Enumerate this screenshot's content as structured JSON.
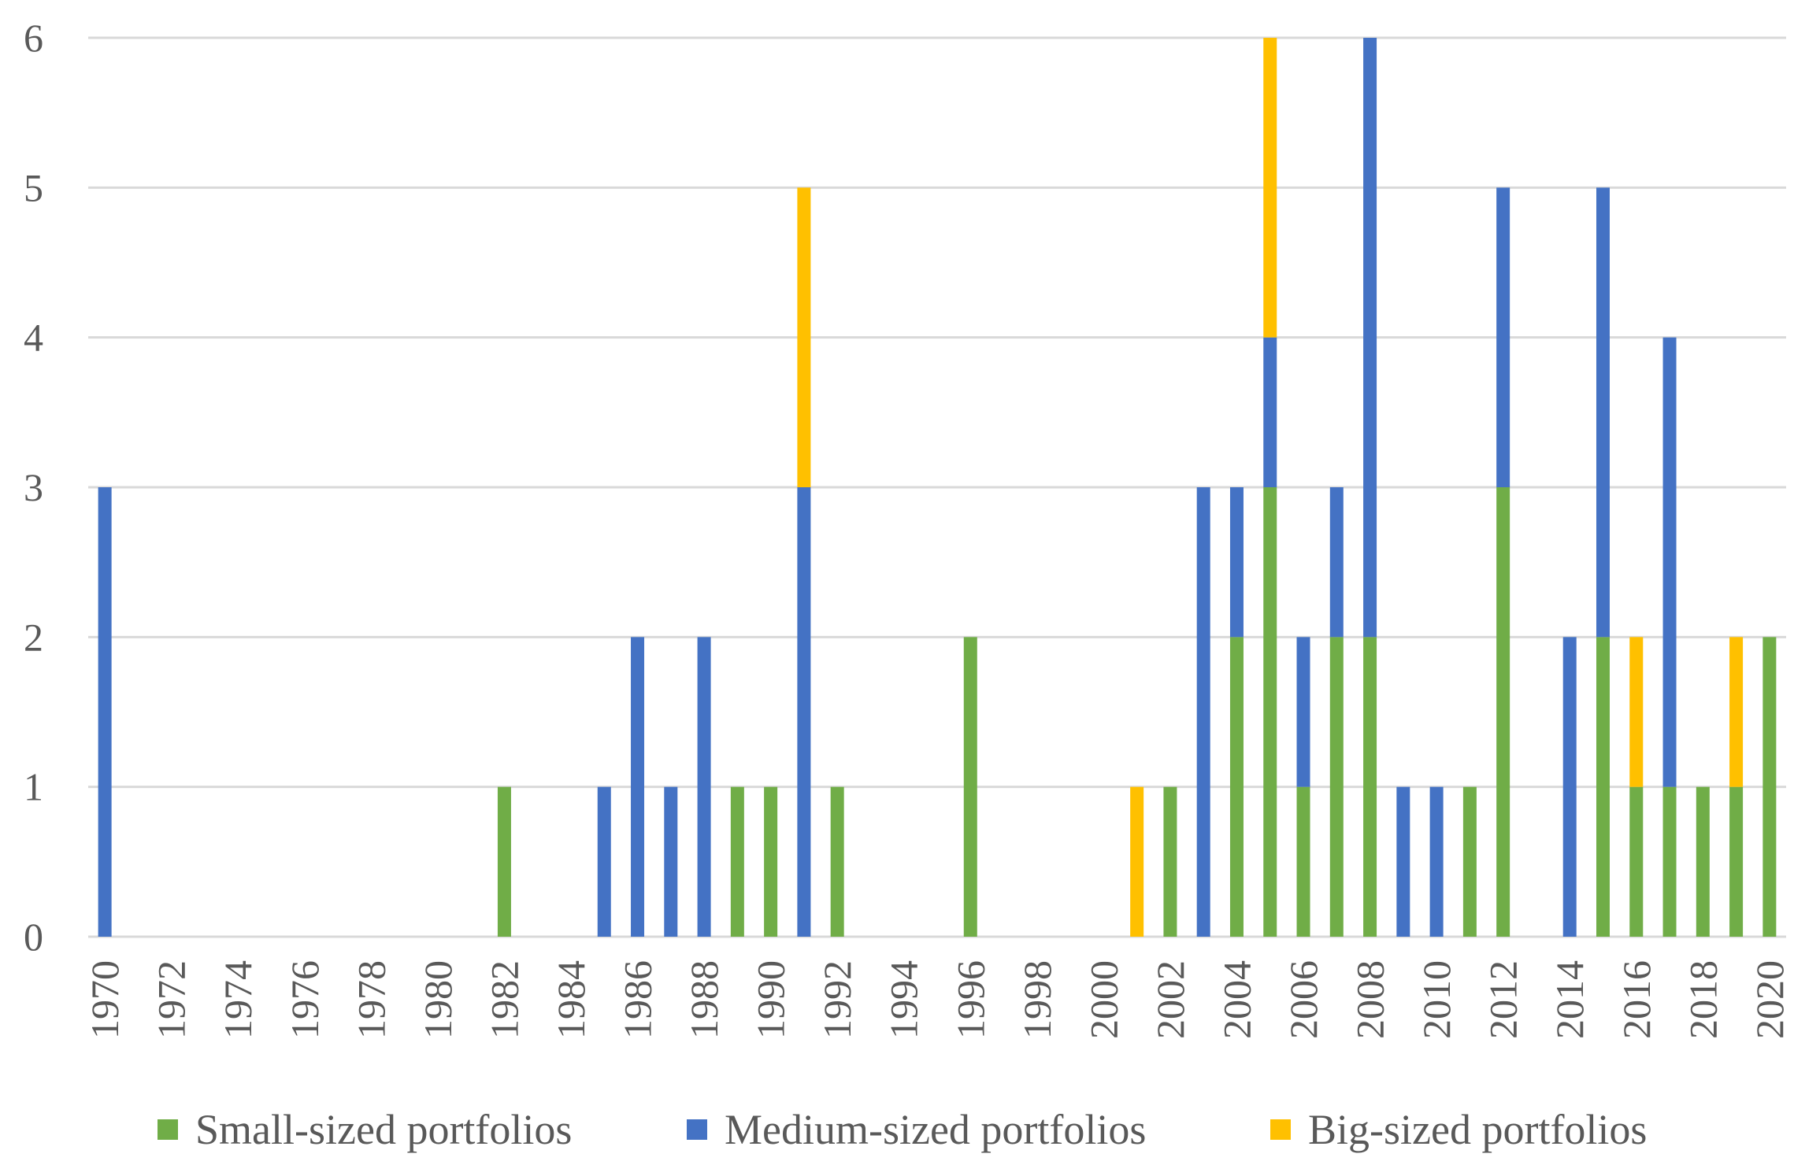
{
  "chart_data": {
    "type": "bar",
    "stacked": true,
    "title": "",
    "xlabel": "",
    "ylabel": "",
    "ylim": [
      0,
      6
    ],
    "yticks": [
      0,
      1,
      2,
      3,
      4,
      5,
      6
    ],
    "grid": true,
    "legend_position": "bottom",
    "categories": [
      "1970",
      "1971",
      "1972",
      "1973",
      "1974",
      "1975",
      "1976",
      "1977",
      "1978",
      "1979",
      "1980",
      "1981",
      "1982",
      "1983",
      "1984",
      "1985",
      "1986",
      "1987",
      "1988",
      "1989",
      "1990",
      "1991",
      "1992",
      "1993",
      "1994",
      "1995",
      "1996",
      "1997",
      "1998",
      "1999",
      "2000",
      "2001",
      "2002",
      "2003",
      "2004",
      "2005",
      "2006",
      "2007",
      "2008",
      "2009",
      "2010",
      "2011",
      "2012",
      "2013",
      "2014",
      "2015",
      "2016",
      "2017",
      "2018",
      "2019",
      "2020"
    ],
    "tick_labels": [
      "1970",
      "1972",
      "1974",
      "1976",
      "1978",
      "1980",
      "1982",
      "1984",
      "1986",
      "1988",
      "1990",
      "1992",
      "1994",
      "1996",
      "1998",
      "2000",
      "2002",
      "2004",
      "2006",
      "2008",
      "2010",
      "2012",
      "2014",
      "2016",
      "2018",
      "2020"
    ],
    "series": [
      {
        "name": "Small-sized portfolios",
        "color": "#70AD47",
        "values": [
          0,
          0,
          0,
          0,
          0,
          0,
          0,
          0,
          0,
          0,
          0,
          0,
          1,
          0,
          0,
          0,
          0,
          0,
          0,
          1,
          1,
          0,
          1,
          0,
          0,
          0,
          2,
          0,
          0,
          0,
          0,
          0,
          1,
          0,
          2,
          3,
          1,
          2,
          2,
          0,
          0,
          1,
          3,
          0,
          0,
          2,
          1,
          1,
          1,
          1,
          2
        ]
      },
      {
        "name": "Medium-sized portfolios",
        "color": "#4472C4",
        "values": [
          3,
          0,
          0,
          0,
          0,
          0,
          0,
          0,
          0,
          0,
          0,
          0,
          0,
          0,
          0,
          1,
          2,
          1,
          2,
          0,
          0,
          3,
          0,
          0,
          0,
          0,
          0,
          0,
          0,
          0,
          0,
          0,
          0,
          3,
          1,
          1,
          1,
          1,
          4,
          1,
          1,
          0,
          2,
          0,
          2,
          3,
          0,
          3,
          0,
          0,
          0
        ]
      },
      {
        "name": "Big-sized portfolios",
        "color": "#FFC000",
        "values": [
          0,
          0,
          0,
          0,
          0,
          0,
          0,
          0,
          0,
          0,
          0,
          0,
          0,
          0,
          0,
          0,
          0,
          0,
          0,
          0,
          0,
          2,
          0,
          0,
          0,
          0,
          0,
          0,
          0,
          0,
          0,
          1,
          0,
          0,
          0,
          2,
          0,
          0,
          0,
          0,
          0,
          0,
          0,
          0,
          0,
          0,
          1,
          0,
          0,
          1,
          0
        ]
      }
    ]
  }
}
